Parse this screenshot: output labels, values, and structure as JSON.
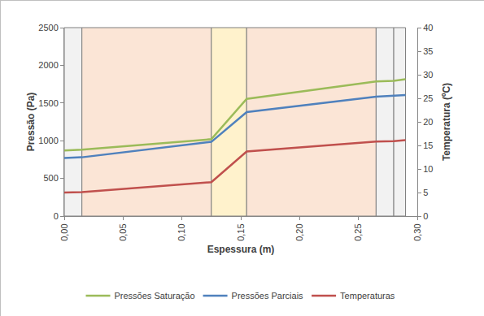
{
  "chart_data": {
    "type": "line",
    "x_label": "Espessura (m)",
    "y_label": "Pressão (Pa)",
    "y2_label": "Temperatura (ºC)",
    "x": [
      0,
      0.015,
      0.125,
      0.155,
      0.265,
      0.28,
      0.29
    ],
    "series": [
      {
        "name": "Pressões Saturação",
        "color": "#9bbb59",
        "values": [
          870,
          880,
          1020,
          1555,
          1785,
          1795,
          1815
        ]
      },
      {
        "name": "Pressões Parciais",
        "color": "#4f81bd",
        "values": [
          770,
          780,
          985,
          1380,
          1585,
          1600,
          1605
        ]
      },
      {
        "name": "Temperaturas",
        "color": "#c0504d",
        "axis": "y2",
        "values": [
          5.0,
          5.1,
          7.2,
          13.7,
          15.8,
          15.9,
          16.1
        ]
      }
    ],
    "xlim": [
      0,
      0.3
    ],
    "xticks": [
      {
        "value": 0,
        "label": "0,00"
      },
      {
        "value": 0.05,
        "label": "0,05"
      },
      {
        "value": 0.1,
        "label": "0,10"
      },
      {
        "value": 0.15,
        "label": "0,15"
      },
      {
        "value": 0.2,
        "label": "0,20"
      },
      {
        "value": 0.25,
        "label": "0,25"
      },
      {
        "value": 0.3,
        "label": "0,30"
      }
    ],
    "ylim": [
      0,
      2500
    ],
    "yticks": [
      0,
      500,
      1000,
      1500,
      2000,
      2500
    ],
    "y2lim": [
      0,
      40
    ],
    "y2ticks": [
      0,
      5,
      10,
      15,
      20,
      25,
      30,
      35,
      40
    ],
    "grid": false,
    "legend": "bottom",
    "layers": [
      {
        "from": 0,
        "to": 0.015,
        "color": "#f2f2f2"
      },
      {
        "from": 0.015,
        "to": 0.125,
        "color": "#fbe5d6"
      },
      {
        "from": 0.125,
        "to": 0.155,
        "color": "#fff2cc"
      },
      {
        "from": 0.155,
        "to": 0.265,
        "color": "#fbe5d6"
      },
      {
        "from": 0.265,
        "to": 0.28,
        "color": "#f2f2f2"
      },
      {
        "from": 0.28,
        "to": 0.29,
        "color": "#f2f2f2"
      }
    ]
  }
}
